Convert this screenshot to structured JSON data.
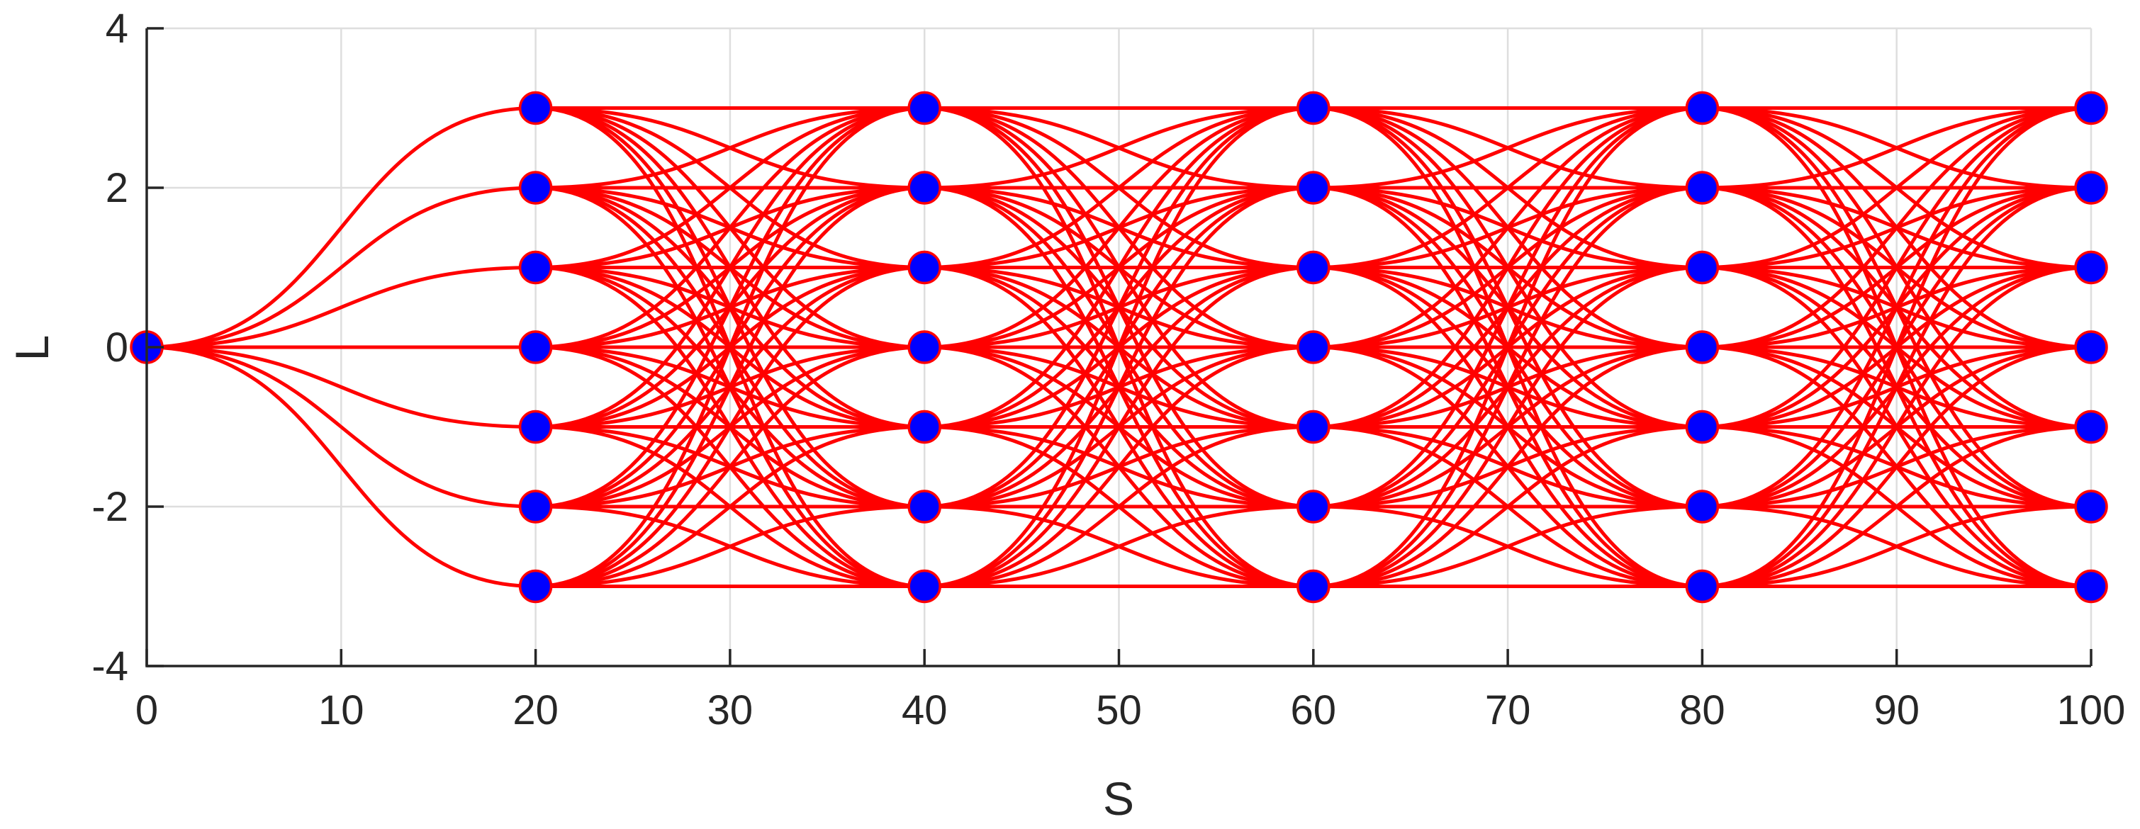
{
  "chart_data": {
    "type": "line",
    "title": "",
    "xlabel": "S",
    "ylabel": "L",
    "xlim": [
      0,
      100
    ],
    "ylim": [
      -4,
      4
    ],
    "xticks": [
      0,
      10,
      20,
      30,
      40,
      50,
      60,
      70,
      80,
      90,
      100
    ],
    "yticks": [
      -4,
      -2,
      0,
      2,
      4
    ],
    "grid": true,
    "line_color": "#ff0000",
    "node_fill": "#0000ff",
    "node_edge": "#ff0000",
    "start_node": {
      "s": 0,
      "l": 0
    },
    "stations_s": [
      20,
      40,
      60,
      80,
      100
    ],
    "lateral_levels": [
      -3,
      -2,
      -1,
      0,
      1,
      2,
      3
    ],
    "connectivity": "start node connects to every level at s=20; every level at each station connects to every level at the next station"
  }
}
